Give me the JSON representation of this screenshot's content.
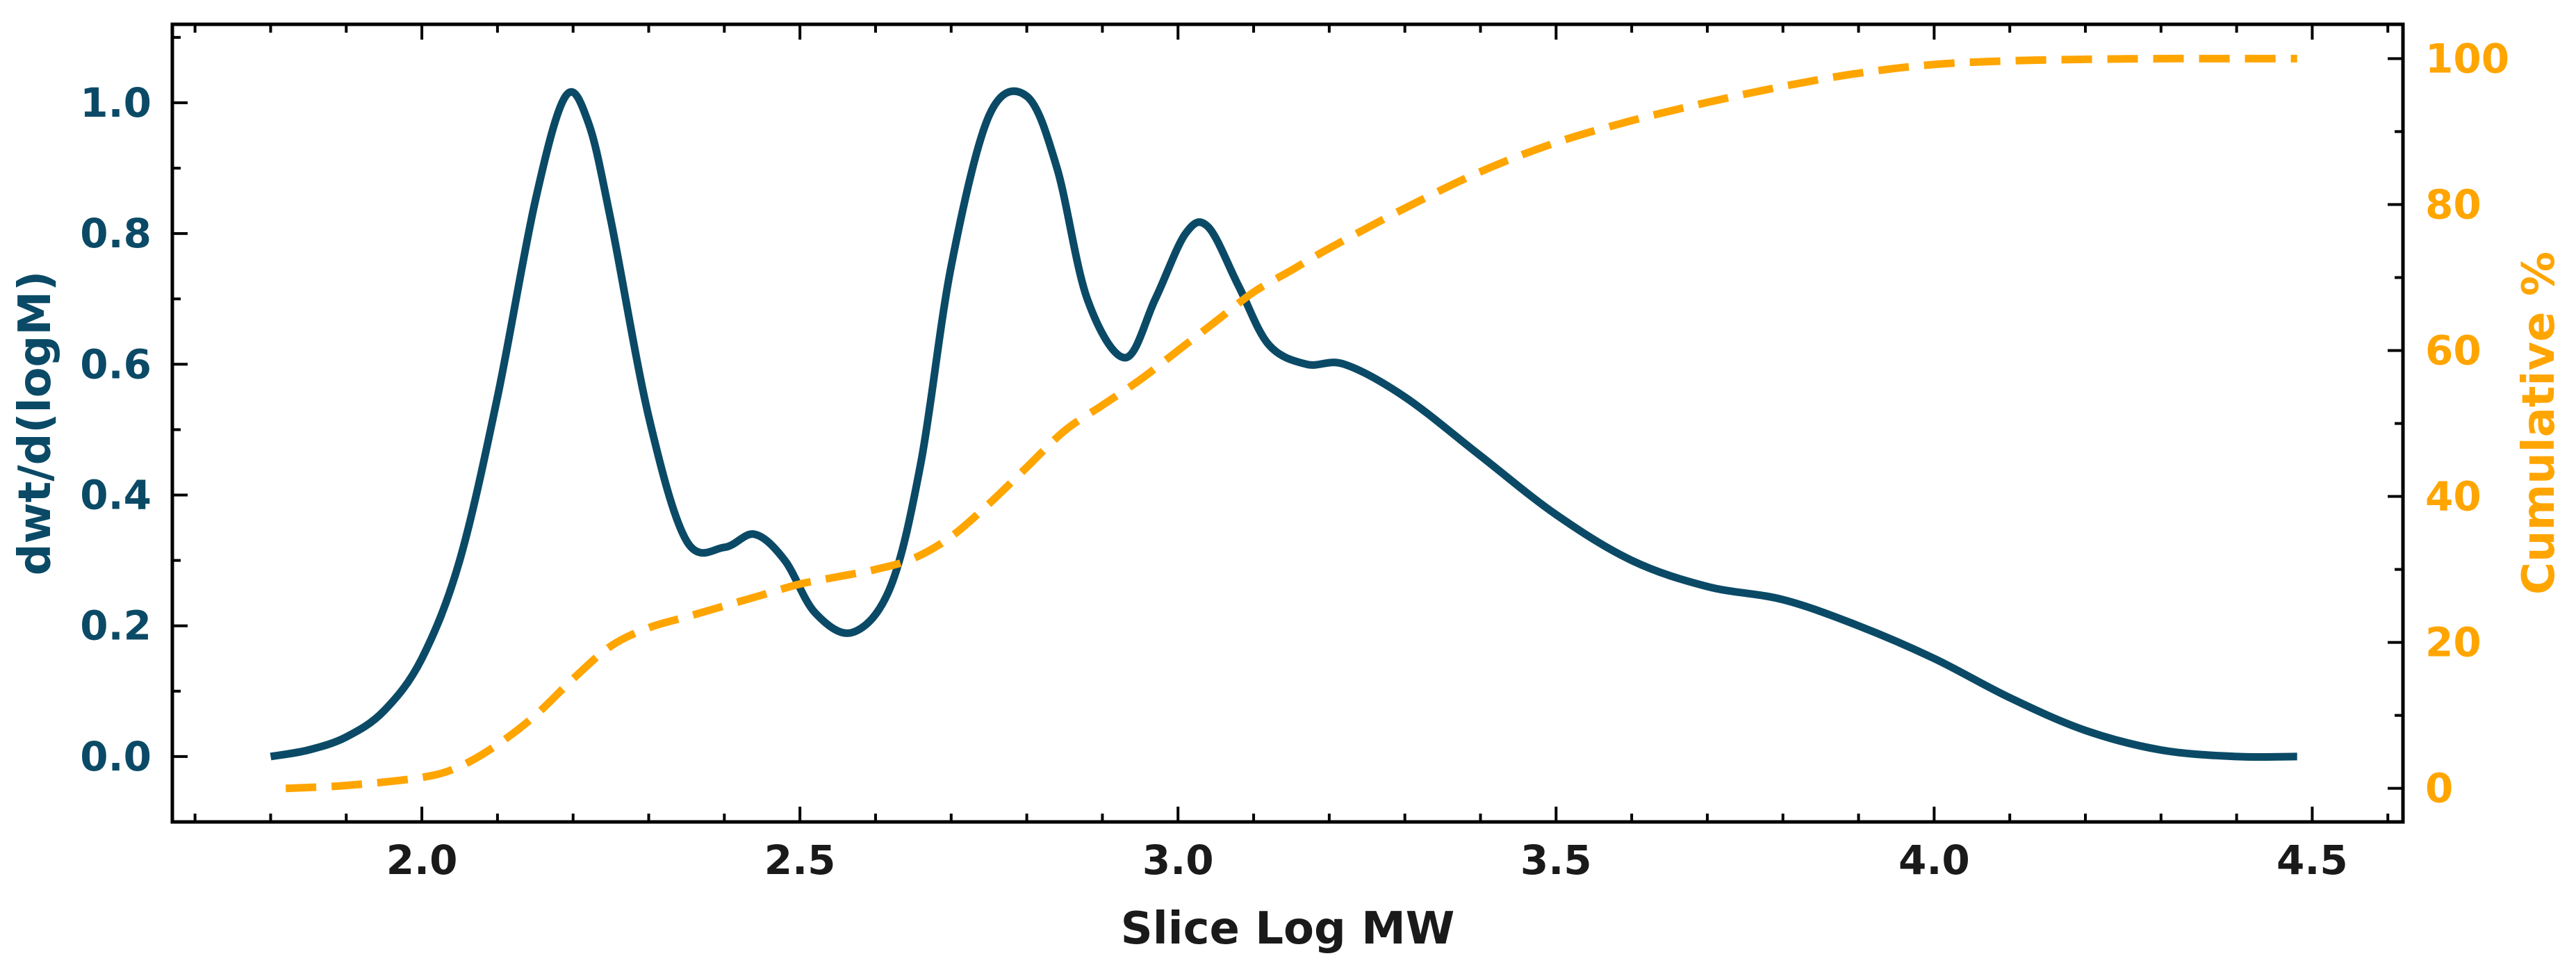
{
  "chart_data": {
    "type": "line",
    "title": "",
    "xlabel": "Slice Log MW",
    "ylabel": "dwt/d(logM)",
    "y2label": "Cumulative %",
    "xlim": [
      1.67,
      4.62
    ],
    "ylim": [
      -0.1,
      1.12
    ],
    "y2lim": [
      -4.6,
      104.7
    ],
    "xticks": [
      2.0,
      2.5,
      3.0,
      3.5,
      4.0,
      4.5
    ],
    "xtick_labels": [
      "2.0",
      "2.5",
      "3.0",
      "3.5",
      "4.0",
      "4.5"
    ],
    "yticks": [
      0.0,
      0.2,
      0.4,
      0.6,
      0.8,
      1.0
    ],
    "ytick_labels": [
      "0.0",
      "0.2",
      "0.4",
      "0.6",
      "0.8",
      "1.0"
    ],
    "y2ticks": [
      0,
      20,
      40,
      60,
      80,
      100
    ],
    "y2tick_labels": [
      "0",
      "20",
      "40",
      "60",
      "80",
      "100"
    ],
    "grid": false,
    "colors": {
      "primary": "#0b4a66",
      "secondary": "#ffa500",
      "axis": "#000000"
    },
    "series": [
      {
        "name": "dwt/d(logM)",
        "axis": "left",
        "style": "solid",
        "x": [
          1.8,
          1.85,
          1.9,
          1.95,
          2.0,
          2.05,
          2.1,
          2.15,
          2.19,
          2.22,
          2.25,
          2.3,
          2.35,
          2.4,
          2.44,
          2.48,
          2.52,
          2.57,
          2.62,
          2.66,
          2.7,
          2.75,
          2.8,
          2.84,
          2.88,
          2.93,
          2.97,
          3.01,
          3.04,
          3.08,
          3.12,
          3.17,
          3.22,
          3.3,
          3.4,
          3.5,
          3.6,
          3.7,
          3.8,
          3.9,
          4.0,
          4.1,
          4.2,
          4.3,
          4.4,
          4.48
        ],
        "values": [
          0.0,
          0.01,
          0.03,
          0.07,
          0.15,
          0.3,
          0.55,
          0.85,
          1.01,
          0.97,
          0.82,
          0.52,
          0.33,
          0.32,
          0.34,
          0.3,
          0.22,
          0.19,
          0.26,
          0.45,
          0.75,
          0.98,
          1.01,
          0.9,
          0.7,
          0.61,
          0.7,
          0.8,
          0.81,
          0.72,
          0.63,
          0.6,
          0.6,
          0.55,
          0.46,
          0.37,
          0.3,
          0.26,
          0.24,
          0.2,
          0.15,
          0.09,
          0.04,
          0.01,
          0.0,
          0.0
        ]
      },
      {
        "name": "Cumulative %",
        "axis": "right",
        "style": "dashed",
        "x": [
          1.82,
          1.9,
          2.0,
          2.05,
          2.1,
          2.15,
          2.2,
          2.25,
          2.3,
          2.35,
          2.4,
          2.45,
          2.5,
          2.55,
          2.6,
          2.65,
          2.7,
          2.75,
          2.8,
          2.85,
          2.9,
          2.95,
          3.0,
          3.05,
          3.1,
          3.15,
          3.2,
          3.3,
          3.4,
          3.5,
          3.6,
          3.7,
          3.8,
          3.9,
          4.0,
          4.1,
          4.2,
          4.3,
          4.4,
          4.48
        ],
        "values": [
          0,
          0.4,
          1.5,
          3,
          6,
          10,
          15,
          19.5,
          22,
          23.5,
          25,
          26.5,
          28,
          29,
          30,
          31.5,
          34.5,
          39,
          44,
          49,
          52.5,
          56,
          60,
          64,
          68,
          71,
          74,
          79.5,
          84.5,
          88.5,
          91.5,
          94,
          96.2,
          98,
          99.2,
          99.7,
          99.9,
          100,
          100,
          100
        ]
      }
    ]
  }
}
